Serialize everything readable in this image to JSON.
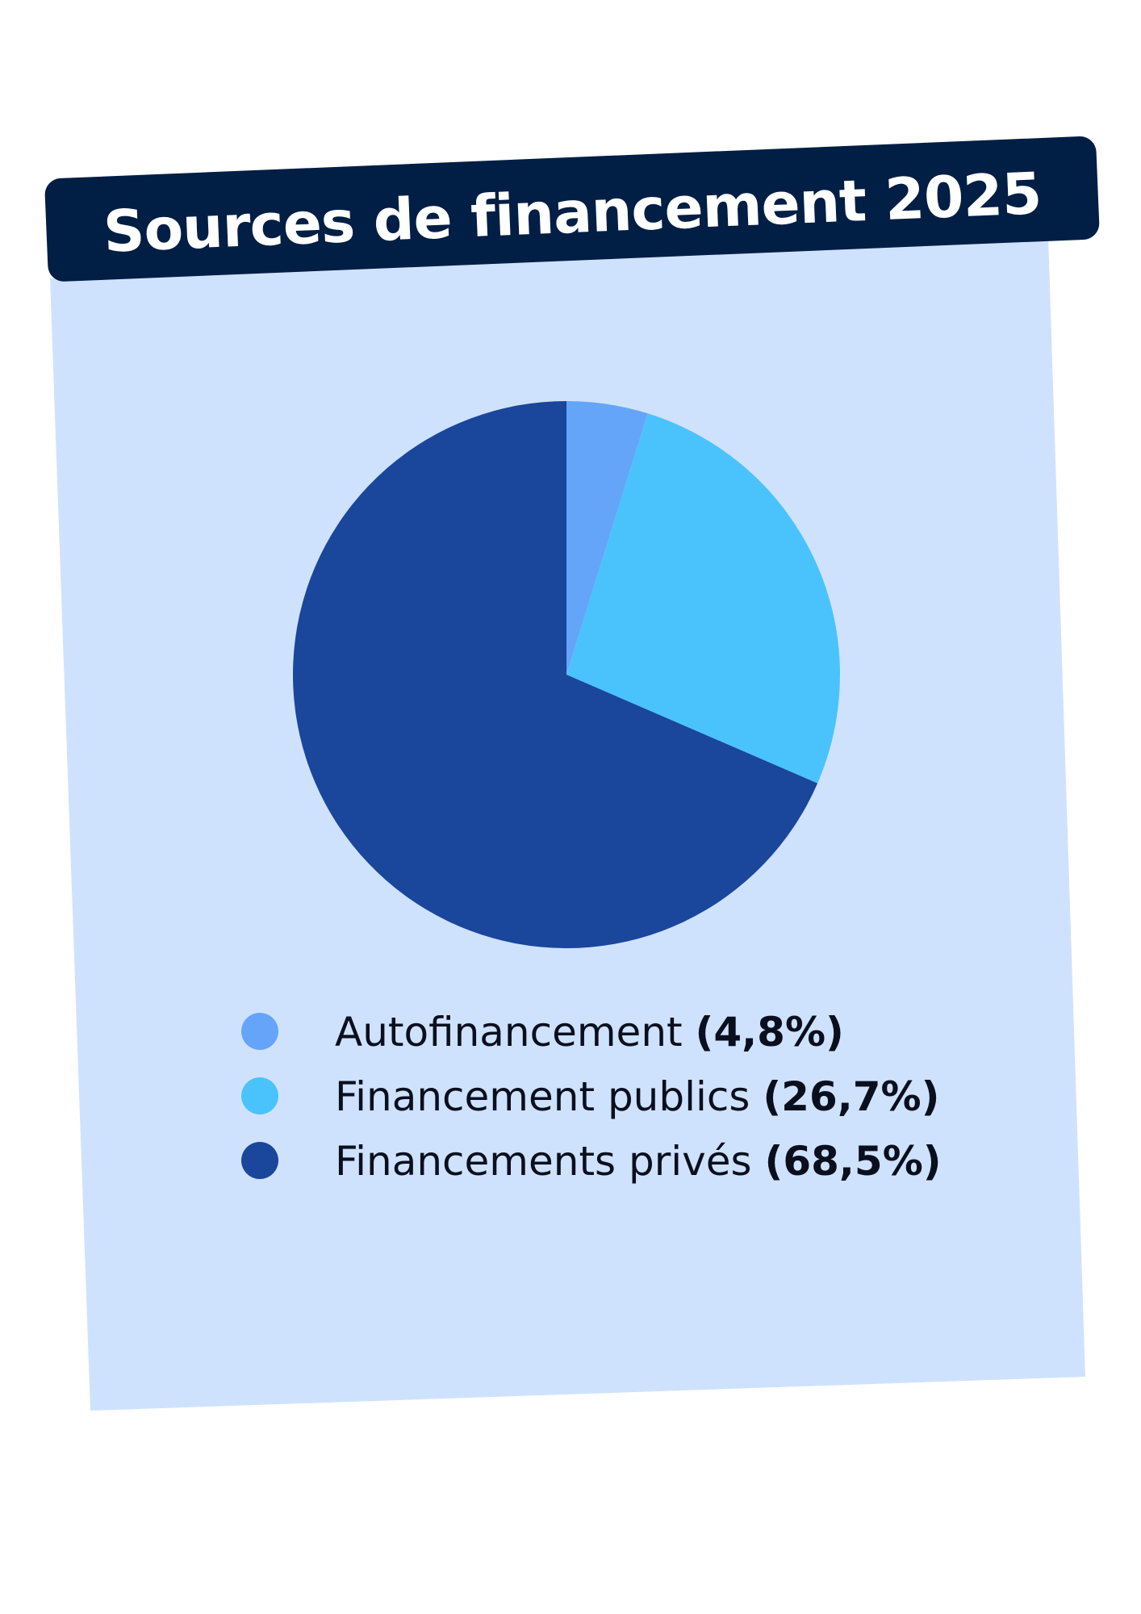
{
  "chart_data": {
    "type": "pie",
    "title": "Sources de financement 2025",
    "series": [
      {
        "name": "Autofinancement",
        "value": 4.8,
        "value_label": "(4,8%)",
        "color": "#64a5fa"
      },
      {
        "name": "Financement publics",
        "value": 26.7,
        "value_label": "(26,7%)",
        "color": "#4ac3fd"
      },
      {
        "name": "Financements privés",
        "value": 68.5,
        "value_label": "(68,5%)",
        "color": "#1a469c"
      }
    ],
    "unit": "%",
    "legend_position": "bottom",
    "start_angle": "12 o'clock",
    "direction": "clockwise"
  },
  "colors": {
    "panel_background": "#cfe2fd",
    "title_banner": "#011e44",
    "title_text": "#ffffff",
    "legend_text": "#0a0f1e"
  }
}
